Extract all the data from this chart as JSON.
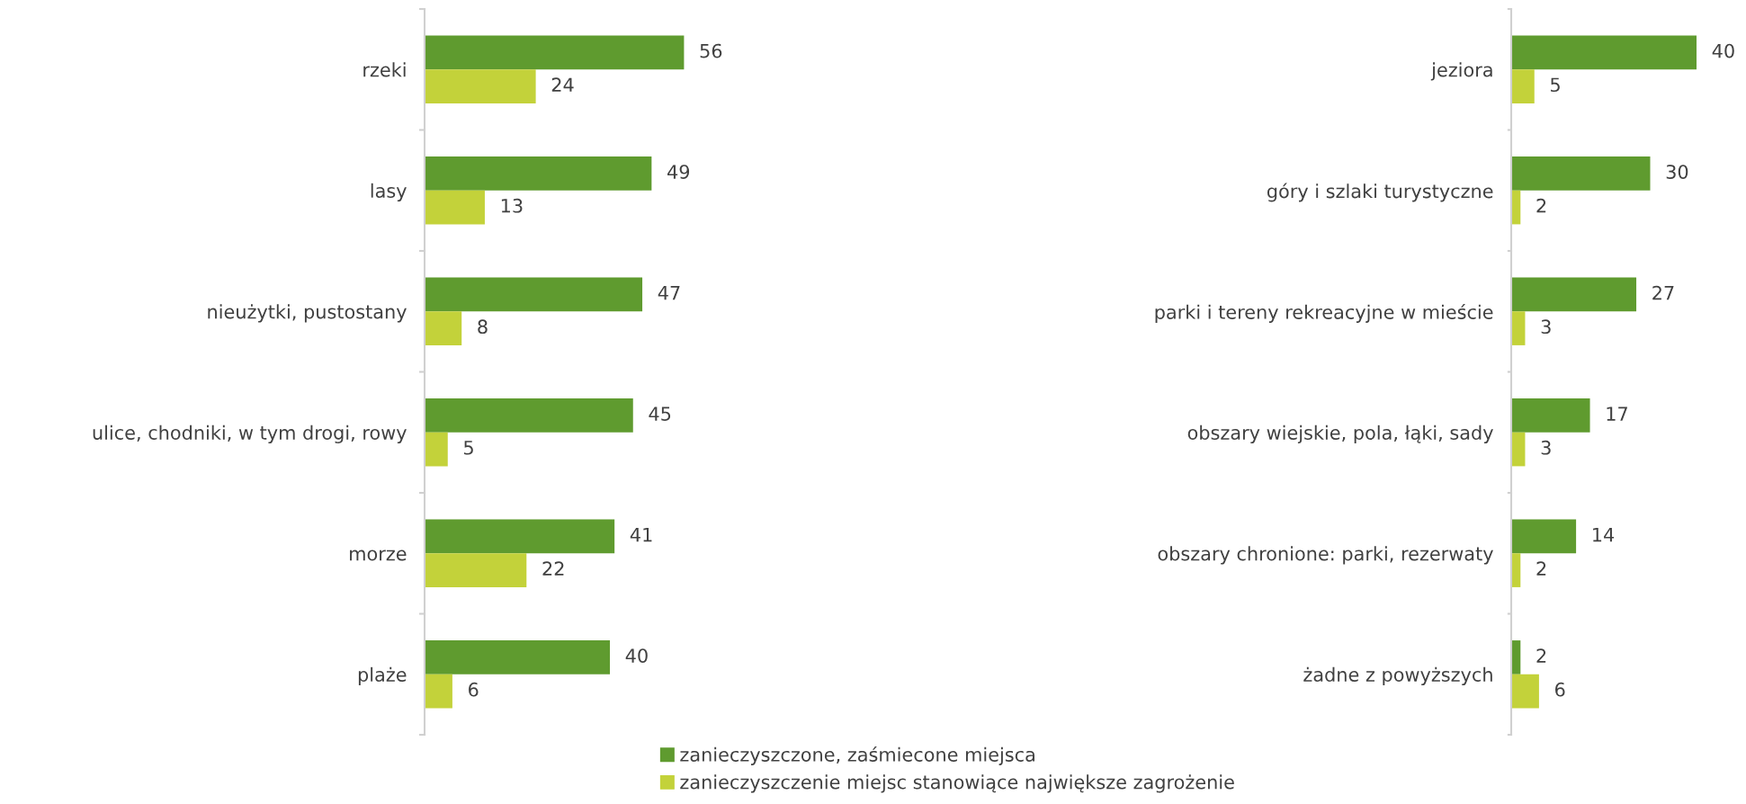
{
  "chart_data": [
    {
      "type": "bar",
      "orientation": "horizontal",
      "categories": [
        "rzeki",
        "lasy",
        "nieużytki, pustostany",
        "ulice, chodniki, w tym drogi, rowy",
        "morze",
        "plaże"
      ],
      "series": [
        {
          "name": "zanieczyszczone, zaśmiecone miejsca",
          "color": "#5f9b2f",
          "values": [
            56,
            49,
            47,
            45,
            41,
            40
          ]
        },
        {
          "name": "zanieczyszczenie miejsc stanowiące największe zagrożenie",
          "color": "#c3d23a",
          "values": [
            24,
            13,
            8,
            5,
            22,
            6
          ]
        }
      ],
      "data_labels": true,
      "tick_labels": "y",
      "legend": "bottom",
      "grid": false
    },
    {
      "type": "bar",
      "orientation": "horizontal",
      "categories": [
        "jeziora",
        "góry i szlaki turystyczne",
        "parki i tereny rekreacyjne w mieście",
        "obszary wiejskie, pola, łąki, sady",
        "obszary chronione: parki, rezerwaty",
        "żadne z powyższych"
      ],
      "series": [
        {
          "color": "#5f9b2f",
          "values": [
            40,
            30,
            27,
            17,
            14,
            2
          ]
        },
        {
          "color": "#c3d23a",
          "values": [
            5,
            2,
            3,
            3,
            2,
            6
          ]
        }
      ],
      "data_labels": true,
      "tick_labels": "y",
      "grid": false
    }
  ]
}
